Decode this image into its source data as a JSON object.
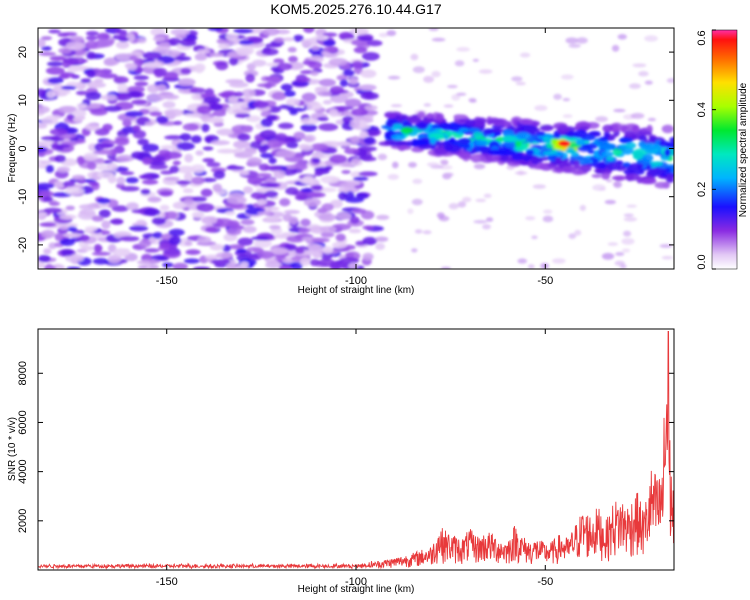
{
  "title": "KOM5.2025.276.10.44.G17",
  "chart_data": [
    {
      "type": "heatmap",
      "xlabel": "Height of straight line (km)",
      "ylabel": "Frequency (Hz)",
      "xlim": [
        -184,
        -16
      ],
      "ylim": [
        -25,
        25
      ],
      "xticks": [
        -150,
        -100,
        -50
      ],
      "yticks": [
        -20,
        -10,
        0,
        10,
        20
      ],
      "colorbar": {
        "label": "Normalized spectral amplitude",
        "range": [
          0,
          0.6
        ],
        "ticks": [
          "0.0",
          "0.2",
          "0.4",
          "0.6"
        ]
      },
      "features": [
        {
          "name": "background-noise",
          "x_range": [
            -184,
            -95
          ],
          "y_range": [
            -25,
            25
          ],
          "amplitude": 0.1
        },
        {
          "name": "signal-band",
          "x_range": [
            -92,
            -16
          ],
          "center_start_hz": 4,
          "center_end_hz": -2,
          "amplitude_peak": 0.55
        },
        {
          "name": "peak",
          "x": -45,
          "y": 1,
          "amplitude": 0.6
        }
      ]
    },
    {
      "type": "line",
      "xlabel": "Height of straight line (km)",
      "ylabel": "SNR (10 * v/v)",
      "xlim": [
        -184,
        -16
      ],
      "ylim": [
        0,
        9800
      ],
      "xticks": [
        -150,
        -100,
        -50
      ],
      "yticks": [
        2000,
        4000,
        6000,
        8000
      ],
      "series": [
        {
          "name": "SNR",
          "color": "#e8393b",
          "envelope": {
            "x": [
              -184,
              -100,
              -95,
              -90,
              -85,
              -80,
              -78,
              -75,
              -72,
              -70,
              -68,
              -65,
              -62,
              -60,
              -58,
              -56,
              -54,
              -52,
              -50,
              -48,
              -46,
              -44,
              -42,
              -40,
              -38,
              -36,
              -34,
              -32,
              -30,
              -28,
              -26,
              -24,
              -22,
              -20,
              -19,
              -18,
              -17,
              -16
            ],
            "y": [
              200,
              200,
              350,
              500,
              700,
              1000,
              1800,
              1500,
              1300,
              1700,
              1400,
              1600,
              1300,
              1200,
              1900,
              1400,
              1200,
              1300,
              1100,
              1200,
              1500,
              1300,
              1900,
              2500,
              2300,
              2600,
              2000,
              2800,
              3000,
              2700,
              3300,
              2500,
              4200,
              3800,
              4500,
              9800,
              5200,
              3000
            ]
          },
          "peak": {
            "x": -17.5,
            "y": 9700
          }
        }
      ]
    }
  ]
}
